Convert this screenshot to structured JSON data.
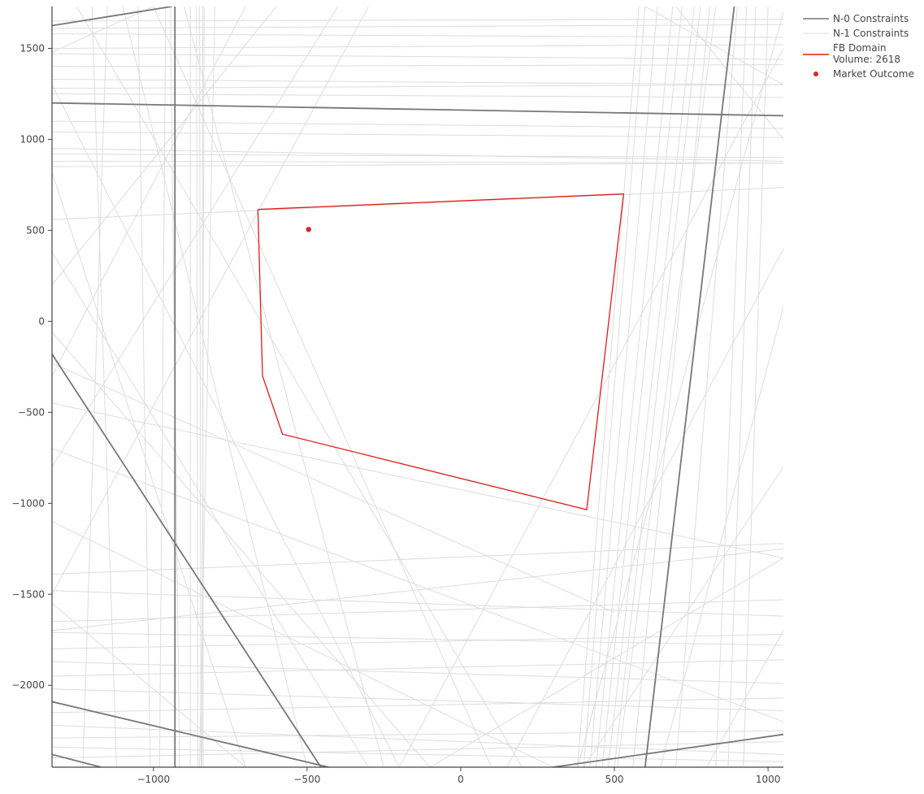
{
  "chart_data": {
    "type": "line",
    "title": "",
    "xlabel": "",
    "ylabel": "",
    "xlim": [
      -1330,
      1050
    ],
    "ylim": [
      -2450,
      1730
    ],
    "grid": false,
    "legend_placement": "top-right",
    "x_ticks": [
      -1000,
      -500,
      0,
      500,
      1000
    ],
    "y_ticks": [
      1500,
      1000,
      500,
      0,
      -500,
      -1000,
      -1500,
      -2000
    ],
    "x_tick_labels": [
      "−1000",
      "−500",
      "0",
      "500",
      "1000"
    ],
    "y_tick_labels": [
      "1500",
      "1000",
      "500",
      "0",
      "−500",
      "−1000",
      "−1500",
      "−2000"
    ],
    "legend": [
      {
        "key": "n0",
        "lines": [
          "N-0 Constraints"
        ],
        "color": "#777777",
        "symbol": "line"
      },
      {
        "key": "n1",
        "lines": [
          "N-1 Constraints"
        ],
        "color": "#dddddd",
        "symbol": "line"
      },
      {
        "key": "fb",
        "lines": [
          "FB Domain",
          "Volume: 2618"
        ],
        "color": "#e41a1c",
        "symbol": "line"
      },
      {
        "key": "mo",
        "lines": [
          "Market Outcome"
        ],
        "color": "#d62728",
        "symbol": "dot"
      }
    ],
    "series": [
      {
        "name": "N-0 Constraints",
        "color": "#777777",
        "lines": [
          [
            [
              -1330,
              1625
            ],
            [
              -940,
              1730
            ]
          ],
          [
            [
              -1330,
              1200
            ],
            [
              1050,
              1130
            ]
          ],
          [
            [
              -930,
              1730
            ],
            [
              -930,
              -2450
            ]
          ],
          [
            [
              -1330,
              -180
            ],
            [
              -455,
              -2450
            ]
          ],
          [
            [
              600,
              -2450
            ],
            [
              890,
              1730
            ]
          ],
          [
            [
              -1330,
              -2090
            ],
            [
              -430,
              -2450
            ]
          ],
          [
            [
              -1330,
              -2380
            ],
            [
              -1170,
              -2450
            ]
          ],
          [
            [
              300,
              -2450
            ],
            [
              1050,
              -2270
            ]
          ]
        ]
      },
      {
        "name": "N-1 Constraints",
        "color": "#dddddd",
        "lines": [
          [
            [
              -1330,
              1650
            ],
            [
              1050,
              1660
            ]
          ],
          [
            [
              -1330,
              1610
            ],
            [
              1050,
              1630
            ]
          ],
          [
            [
              -1330,
              1580
            ],
            [
              1050,
              1560
            ]
          ],
          [
            [
              -1330,
              1500
            ],
            [
              1050,
              1520
            ]
          ],
          [
            [
              -1330,
              1470
            ],
            [
              1050,
              1440
            ]
          ],
          [
            [
              -1330,
              1400
            ],
            [
              1050,
              1410
            ]
          ],
          [
            [
              -1330,
              1330
            ],
            [
              1050,
              1300
            ]
          ],
          [
            [
              -1330,
              1280
            ],
            [
              1050,
              1300
            ]
          ],
          [
            [
              -1330,
              1250
            ],
            [
              1050,
              1230
            ]
          ],
          [
            [
              -1330,
              1100
            ],
            [
              1050,
              1060
            ]
          ],
          [
            [
              -1330,
              1040
            ],
            [
              1050,
              1010
            ]
          ],
          [
            [
              -1330,
              950
            ],
            [
              1050,
              880
            ]
          ],
          [
            [
              -1330,
              920
            ],
            [
              1050,
              900
            ]
          ],
          [
            [
              -1330,
              880
            ],
            [
              1050,
              870
            ]
          ],
          [
            [
              -1330,
              850
            ],
            [
              1050,
              870
            ]
          ],
          [
            [
              -1330,
              560
            ],
            [
              1050,
              735
            ]
          ],
          [
            [
              -1330,
              -1390
            ],
            [
              1050,
              -1220
            ]
          ],
          [
            [
              -1330,
              -1480
            ],
            [
              1050,
              -1620
            ]
          ],
          [
            [
              -1330,
              -1650
            ],
            [
              1050,
              -1530
            ]
          ],
          [
            [
              -1330,
              -1710
            ],
            [
              1050,
              -1780
            ]
          ],
          [
            [
              -1330,
              -1800
            ],
            [
              1050,
              -1720
            ]
          ],
          [
            [
              -1330,
              -1870
            ],
            [
              1050,
              -1990
            ]
          ],
          [
            [
              -1330,
              -1950
            ],
            [
              1050,
              -1860
            ]
          ],
          [
            [
              -1330,
              -2020
            ],
            [
              1050,
              -2140
            ]
          ],
          [
            [
              -1330,
              -2150
            ],
            [
              1050,
              -2070
            ]
          ],
          [
            [
              -1330,
              -2220
            ],
            [
              1050,
              -2380
            ]
          ],
          [
            [
              -1330,
              -2290
            ],
            [
              1050,
              -2250
            ]
          ],
          [
            [
              -1330,
              -2340
            ],
            [
              1050,
              -2420
            ]
          ],
          [
            [
              -1330,
              -2400
            ],
            [
              1050,
              -2310
            ]
          ],
          [
            [
              -1200,
              1730
            ],
            [
              -1120,
              -2450
            ]
          ],
          [
            [
              -1150,
              1730
            ],
            [
              -1230,
              -2450
            ]
          ],
          [
            [
              -1050,
              1730
            ],
            [
              -1010,
              -2450
            ]
          ],
          [
            [
              -960,
              1730
            ],
            [
              -980,
              -2450
            ]
          ],
          [
            [
              -945,
              1730
            ],
            [
              -915,
              -2450
            ]
          ],
          [
            [
              -880,
              1730
            ],
            [
              -880,
              -2450
            ]
          ],
          [
            [
              -860,
              1730
            ],
            [
              -855,
              -2450
            ]
          ],
          [
            [
              -850,
              1730
            ],
            [
              -845,
              -2450
            ]
          ],
          [
            [
              -840,
              1730
            ],
            [
              -838,
              -2450
            ]
          ],
          [
            [
              -835,
              1730
            ],
            [
              -842,
              -2450
            ]
          ],
          [
            [
              -800,
              1730
            ],
            [
              -850,
              -2450
            ]
          ],
          [
            [
              380,
              -2450
            ],
            [
              580,
              1730
            ]
          ],
          [
            [
              400,
              -2450
            ],
            [
              600,
              1730
            ]
          ],
          [
            [
              420,
              -2450
            ],
            [
              640,
              1730
            ]
          ],
          [
            [
              440,
              -2450
            ],
            [
              690,
              1730
            ]
          ],
          [
            [
              460,
              -2450
            ],
            [
              720,
              1730
            ]
          ],
          [
            [
              480,
              -2450
            ],
            [
              760,
              1730
            ]
          ],
          [
            [
              500,
              -2450
            ],
            [
              780,
              1730
            ]
          ],
          [
            [
              510,
              -2450
            ],
            [
              830,
              1730
            ]
          ],
          [
            [
              560,
              -2450
            ],
            [
              810,
              1730
            ]
          ],
          [
            [
              700,
              -2450
            ],
            [
              900,
              1730
            ]
          ],
          [
            [
              830,
              -2450
            ],
            [
              930,
              1730
            ]
          ],
          [
            [
              870,
              -2450
            ],
            [
              960,
              1730
            ]
          ],
          [
            [
              920,
              -2450
            ],
            [
              1000,
              1730
            ]
          ],
          [
            [
              650,
              -2450
            ],
            [
              1050,
              80
            ]
          ],
          [
            [
              -1330,
              1300
            ],
            [
              -200,
              -2450
            ]
          ],
          [
            [
              -1330,
              820
            ],
            [
              -700,
              -2450
            ]
          ],
          [
            [
              -1330,
              380
            ],
            [
              -300,
              -2450
            ]
          ],
          [
            [
              -1330,
              -60
            ],
            [
              -100,
              -2450
            ]
          ],
          [
            [
              -1250,
              1730
            ],
            [
              200,
              -2450
            ]
          ],
          [
            [
              -1100,
              1730
            ],
            [
              -500,
              -2450
            ]
          ],
          [
            [
              -1000,
              1730
            ],
            [
              100,
              -2450
            ]
          ],
          [
            [
              -900,
              1730
            ],
            [
              -250,
              -2450
            ]
          ],
          [
            [
              -700,
              1730
            ],
            [
              -1330,
              -300
            ]
          ],
          [
            [
              -600,
              1730
            ],
            [
              -1330,
              200
            ]
          ],
          [
            [
              -400,
              1730
            ],
            [
              -1330,
              -800
            ]
          ],
          [
            [
              -300,
              1730
            ],
            [
              -1330,
              -1500
            ]
          ],
          [
            [
              -1330,
              -450
            ],
            [
              1050,
              -1300
            ]
          ],
          [
            [
              -1330,
              -230
            ],
            [
              500,
              -1600
            ]
          ],
          [
            [
              -1330,
              -700
            ],
            [
              1050,
              -2200
            ]
          ],
          [
            [
              -1330,
              -1100
            ],
            [
              300,
              -2450
            ]
          ],
          [
            [
              1050,
              1500
            ],
            [
              -200,
              -2450
            ]
          ],
          [
            [
              1050,
              400
            ],
            [
              150,
              -2450
            ]
          ],
          [
            [
              1050,
              -800
            ],
            [
              400,
              -2450
            ]
          ],
          [
            [
              1050,
              1700
            ],
            [
              380,
              -2450
            ]
          ],
          [
            [
              1050,
              -1300
            ],
            [
              -100,
              -2450
            ]
          ],
          [
            [
              700,
              1730
            ],
            [
              1050,
              1000
            ]
          ],
          [
            [
              600,
              1730
            ],
            [
              1050,
              1300
            ]
          ],
          [
            [
              -1330,
              -1550
            ],
            [
              -700,
              -2450
            ]
          ],
          [
            [
              -1330,
              1480
            ],
            [
              -1000,
              1730
            ]
          ],
          [
            [
              -1330,
              -1700
            ],
            [
              1050,
              -1250
            ]
          ],
          [
            [
              800,
              -2450
            ],
            [
              1050,
              -1700
            ]
          ]
        ]
      }
    ],
    "fb_domain": {
      "name": "FB Domain",
      "color": "#e41a1c",
      "points": [
        [
          -660,
          615
        ],
        [
          530,
          700
        ],
        [
          410,
          -1035
        ],
        [
          -580,
          -620
        ],
        [
          -645,
          -300
        ],
        [
          -660,
          615
        ]
      ]
    },
    "market_outcome": {
      "name": "Market Outcome",
      "color": "#d62728",
      "points": [
        [
          -495,
          505
        ]
      ]
    }
  }
}
